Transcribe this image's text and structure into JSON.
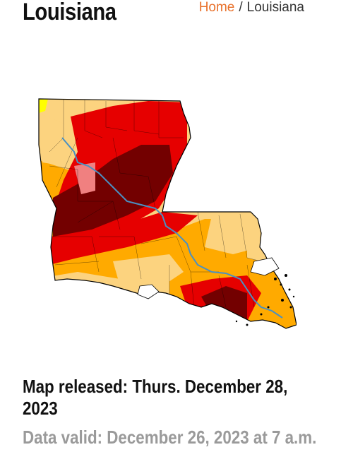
{
  "header": {
    "title": "Louisiana",
    "breadcrumb": {
      "home": "Home",
      "separator": "/",
      "current": "Louisiana"
    }
  },
  "map": {
    "subject": "Louisiana drought monitor",
    "colors": {
      "abnormally_dry": "#ffff00",
      "moderate": "#fcd37f",
      "severe": "#ffaa00",
      "extreme": "#e60000",
      "exceptional": "#730000",
      "river": "#4a90c2"
    }
  },
  "footer": {
    "released": "Map released: Thurs. December 28, 2023",
    "valid": "Data valid: December 26, 2023 at 7 a.m."
  }
}
